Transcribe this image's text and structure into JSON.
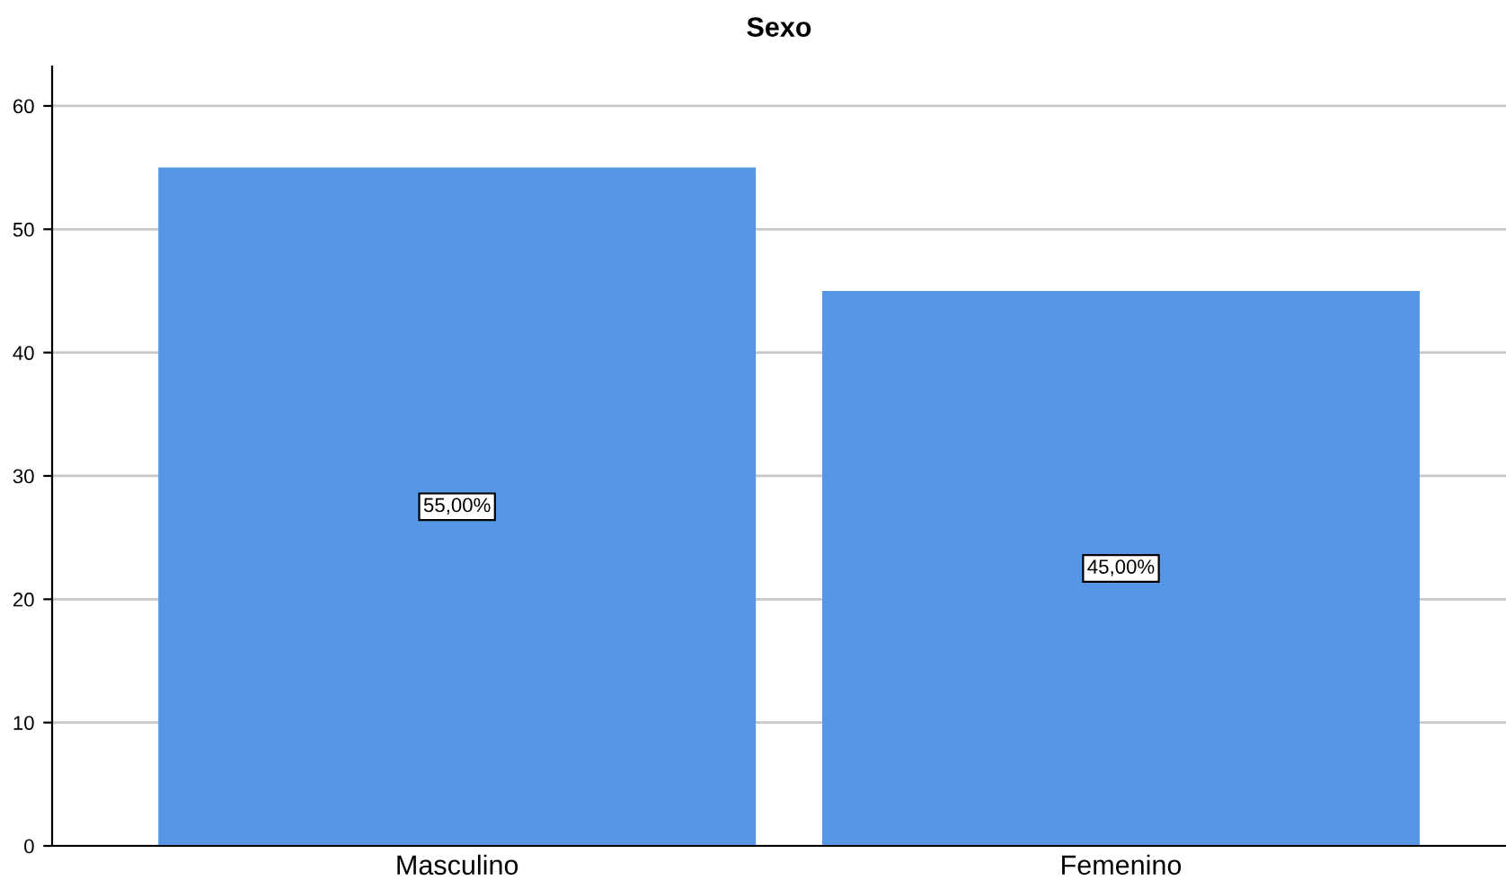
{
  "chart_data": {
    "type": "bar",
    "title": "Sexo",
    "categories": [
      "Masculino",
      "Femenino"
    ],
    "values": [
      55,
      45
    ],
    "value_labels": [
      "55,00%",
      "45,00%"
    ],
    "color": "#5597e4",
    "ylim": [
      0,
      63.2
    ],
    "yticks": [
      0,
      10,
      20,
      30,
      40,
      50,
      60
    ],
    "grid": "y",
    "legend": false
  }
}
